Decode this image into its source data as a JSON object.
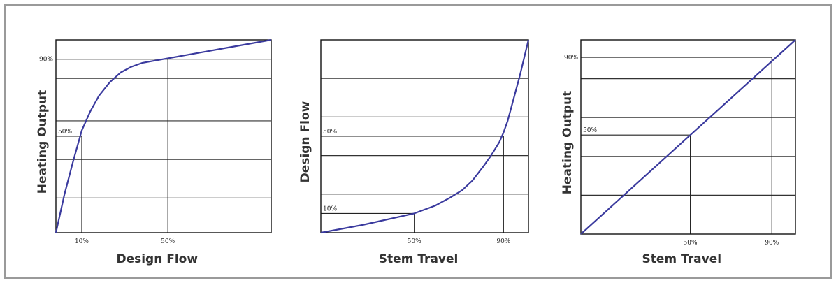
{
  "colors": {
    "curve": "#3a3a9e",
    "axis": "#111111",
    "grid": "#333333",
    "ref": "#222222"
  },
  "chart_data": [
    {
      "type": "line",
      "xlabel": "Design Flow",
      "ylabel": "Heating Output",
      "xlim": [
        0,
        100
      ],
      "ylim": [
        0,
        100
      ],
      "gridlines_y": [
        18,
        38,
        58,
        80,
        90
      ],
      "series": [
        {
          "x": [
            0,
            4,
            8,
            12,
            16,
            20,
            25,
            30,
            35,
            40,
            50,
            60,
            70,
            80,
            90,
            100
          ],
          "y": [
            0,
            20,
            37,
            53,
            63,
            71,
            78,
            83,
            86,
            88,
            90,
            92,
            94,
            96,
            98,
            100
          ]
        }
      ],
      "refs": [
        {
          "x": 12,
          "y": 50,
          "label_y": "50%",
          "label_x": "10%"
        },
        {
          "x": 52,
          "y": 90,
          "label_y": "90%",
          "label_x": "50%"
        }
      ]
    },
    {
      "type": "line",
      "xlabel": "Stem Travel",
      "ylabel": "Design Flow",
      "xlim": [
        0,
        100
      ],
      "ylim": [
        0,
        100
      ],
      "gridlines_y": [
        20,
        40,
        60,
        80
      ],
      "series": [
        {
          "x": [
            0,
            20,
            45,
            55,
            62,
            68,
            73,
            78,
            82,
            86,
            88,
            90,
            93,
            96,
            100
          ],
          "y": [
            0,
            4,
            10,
            14,
            18,
            22,
            27,
            34,
            40,
            47,
            52,
            58,
            70,
            82,
            100
          ]
        }
      ],
      "refs": [
        {
          "x": 45,
          "y": 10,
          "label_y": "10%",
          "label_x": "50%"
        },
        {
          "x": 88,
          "y": 50,
          "label_y": "50%",
          "label_x": "90%"
        }
      ]
    },
    {
      "type": "line",
      "xlabel": "Stem Travel",
      "ylabel": "Heating Output",
      "xlim": [
        0,
        100
      ],
      "ylim": [
        0,
        100
      ],
      "gridlines_y": [
        20,
        40,
        60,
        80
      ],
      "series": [
        {
          "x": [
            0,
            100
          ],
          "y": [
            0,
            100
          ]
        }
      ],
      "refs": [
        {
          "x": 51,
          "y": 51,
          "label_y": "50%",
          "label_x": "50%"
        },
        {
          "x": 89,
          "y": 91,
          "label_y": "90%",
          "label_x": "90%"
        }
      ]
    }
  ]
}
